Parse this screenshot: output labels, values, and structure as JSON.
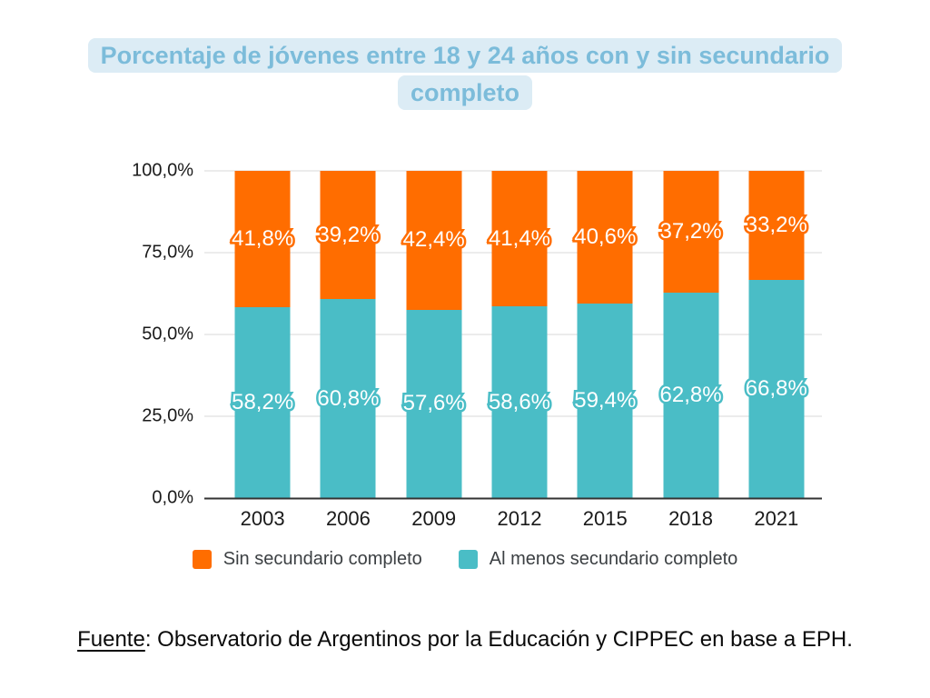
{
  "title": {
    "line1": "Porcentaje de jóvenes entre 18 y 24 años con y sin secundario",
    "line2": "completo"
  },
  "source": {
    "prefix": "Fuente",
    "rest": ": Observatorio de Argentinos por la Educación y CIPPEC en base a EPH."
  },
  "legend": [
    {
      "label": "Sin secundario completo",
      "color": "#FF6D00"
    },
    {
      "label": "Al menos secundario completo",
      "color": "#4ABDC6"
    }
  ],
  "colors": {
    "orange": "#FF6D00",
    "teal": "#4ABDC6",
    "title_text": "#7CBCDA",
    "title_highlight": "#DCECF5",
    "gridline": "#D8D8D8",
    "axis_line": "#333333",
    "tick_text": "#1A1A1A",
    "legend_text": "#3C4043"
  },
  "chart_data": {
    "type": "bar",
    "stacked": true,
    "title": "Porcentaje de jóvenes entre 18 y 24 años con y sin secundario completo",
    "categories": [
      "2003",
      "2006",
      "2009",
      "2012",
      "2015",
      "2018",
      "2021"
    ],
    "series": [
      {
        "name": "Sin secundario completo",
        "color": "#FF6D00",
        "position": "top",
        "values": [
          41.8,
          39.2,
          42.4,
          41.4,
          40.6,
          37.2,
          33.2
        ],
        "labels": [
          "41,8%",
          "39,2%",
          "42,4%",
          "41,4%",
          "40,6%",
          "37,2%",
          "33,2%"
        ]
      },
      {
        "name": "Al menos secundario completo",
        "color": "#4ABDC6",
        "position": "bottom",
        "values": [
          58.2,
          60.8,
          57.6,
          58.6,
          59.4,
          62.8,
          66.8
        ],
        "labels": [
          "58,2%",
          "60,8%",
          "57,6%",
          "58,6%",
          "59,4%",
          "62,8%",
          "66,8%"
        ]
      }
    ],
    "y_axis": {
      "range": [
        0,
        100
      ],
      "grid": true,
      "ticks": [
        {
          "value": 100,
          "label": "100,0%"
        },
        {
          "value": 75,
          "label": "75,0%"
        },
        {
          "value": 50,
          "label": "50,0%"
        },
        {
          "value": 25,
          "label": "25,0%"
        },
        {
          "value": 0,
          "label": "0,0%"
        }
      ]
    },
    "legend_position": "bottom",
    "data_label_style": "white-text-with-series-color-outline"
  }
}
